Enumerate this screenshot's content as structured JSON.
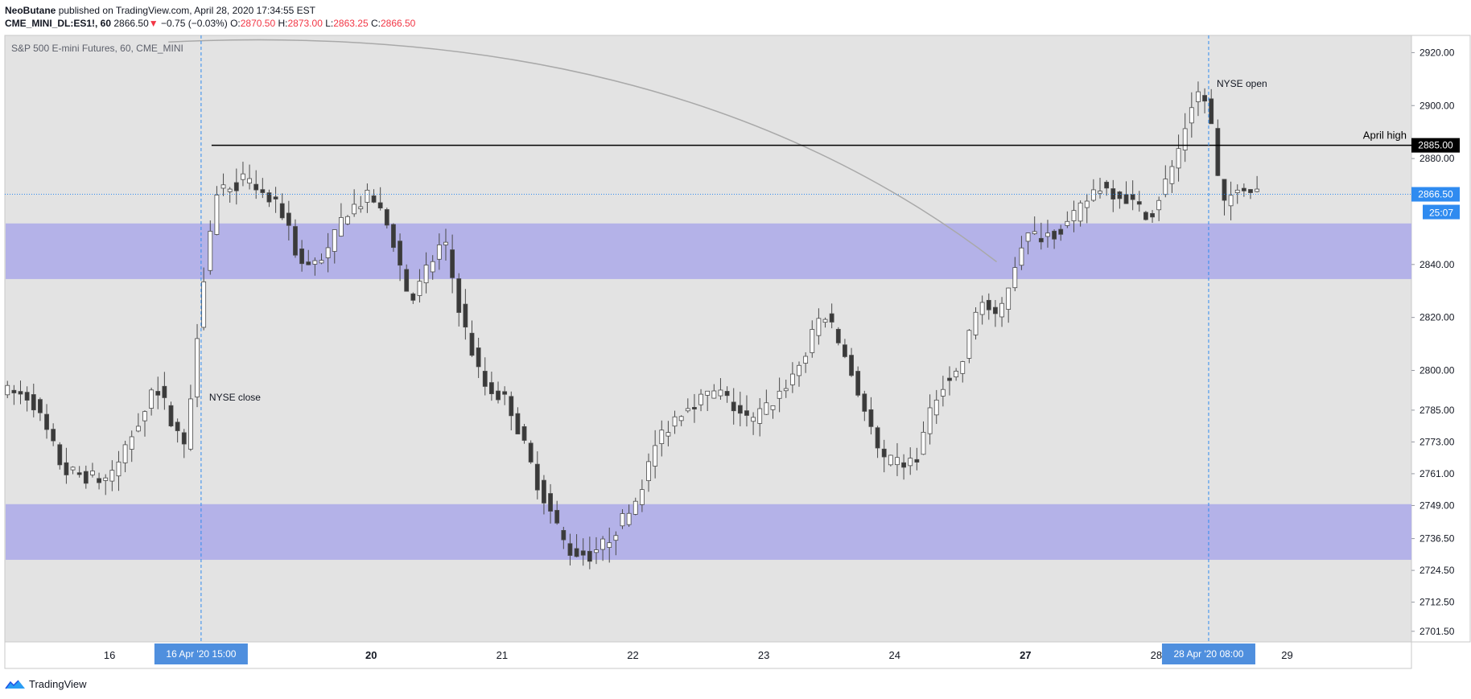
{
  "header": {
    "line1_author": "NeoButane",
    "line1_rest": "published on TradingView.com, April 28, 2020 17:34:55 EST",
    "symbol": "CME_MINI_DL:ES1!, 60",
    "last": "2866.50",
    "change_arrow": "▼",
    "change": "−0.75 (−0.03%)",
    "o_label": "O:",
    "o": "2870.50",
    "h_label": "H:",
    "h": "2873.00",
    "l_label": "L:",
    "l": "2863.25",
    "c_label": "C:",
    "c": "2866.50"
  },
  "footer": {
    "brand": "TradingView"
  },
  "colors": {
    "pane_bg": "#e3e3e3",
    "zone": "#b4b2e8",
    "up_body": "#ffffff",
    "down_body": "#3a3a3a",
    "wick": "#4a4a4a",
    "accent_blue": "#2f8bf0",
    "label_blue": "#4f8fde",
    "curve": "#a9a9a9"
  },
  "chart_data": {
    "type": "candlestick",
    "title": "S&P 500 E-mini Futures, 60, CME_MINI",
    "x_labels": [
      {
        "t": 0.8,
        "label": "16",
        "bold": false
      },
      {
        "t": 2.8,
        "label": "20",
        "bold": true
      },
      {
        "t": 3.8,
        "label": "21",
        "bold": false
      },
      {
        "t": 4.8,
        "label": "22",
        "bold": false
      },
      {
        "t": 5.8,
        "label": "23",
        "bold": false
      },
      {
        "t": 6.8,
        "label": "24",
        "bold": false
      },
      {
        "t": 7.8,
        "label": "27",
        "bold": true
      },
      {
        "t": 8.8,
        "label": "28",
        "bold": false
      },
      {
        "t": 9.8,
        "label": "29",
        "bold": false
      }
    ],
    "x_range": [
      0,
      10.75
    ],
    "y_range": [
      2697.5,
      2926.5
    ],
    "y_ticks": [
      "2920.00",
      "2900.00",
      "2880.00",
      "2840.00",
      "2820.00",
      "2800.00",
      "2785.00",
      "2773.00",
      "2761.00",
      "2749.00",
      "2736.50",
      "2724.50",
      "2712.50",
      "2701.50"
    ],
    "y_ticks_values": [
      2920,
      2900,
      2880,
      2840,
      2820,
      2800,
      2785,
      2773,
      2761,
      2749,
      2736.5,
      2724.5,
      2712.5,
      2701.5
    ],
    "zones": [
      {
        "from": 2834.5,
        "to": 2855.5
      },
      {
        "from": 2728.5,
        "to": 2749.5
      }
    ],
    "horizontal_lines": [
      {
        "value": 2885.0,
        "label": "April high",
        "price_label": "2885.00",
        "style": "solid"
      },
      {
        "value": 2866.5,
        "price_label": "2866.50",
        "style": "dotted",
        "countdown": "25:07"
      }
    ],
    "vertical_markers": [
      {
        "t": 1.5,
        "label": "NYSE close",
        "axis_label": "16 Apr '20   15:00"
      },
      {
        "t": 9.2,
        "label": "NYSE open",
        "axis_label": "28 Apr '20   08:00"
      }
    ],
    "curve_label": "",
    "anchors": [
      [
        0.0,
        2792
      ],
      [
        0.2,
        2790
      ],
      [
        0.45,
        2762
      ],
      [
        0.8,
        2758
      ],
      [
        1.15,
        2795
      ],
      [
        1.38,
        2770
      ],
      [
        1.5,
        2830
      ],
      [
        1.62,
        2868
      ],
      [
        1.85,
        2872
      ],
      [
        2.15,
        2858
      ],
      [
        2.25,
        2840
      ],
      [
        2.45,
        2842
      ],
      [
        2.6,
        2860
      ],
      [
        2.8,
        2866
      ],
      [
        2.95,
        2852
      ],
      [
        3.1,
        2825
      ],
      [
        3.25,
        2840
      ],
      [
        3.35,
        2850
      ],
      [
        3.5,
        2818
      ],
      [
        3.65,
        2795
      ],
      [
        3.85,
        2788
      ],
      [
        4.05,
        2760
      ],
      [
        4.3,
        2732
      ],
      [
        4.5,
        2730
      ],
      [
        4.8,
        2748
      ],
      [
        5.0,
        2775
      ],
      [
        5.2,
        2787
      ],
      [
        5.45,
        2792
      ],
      [
        5.7,
        2780
      ],
      [
        5.9,
        2790
      ],
      [
        6.1,
        2804
      ],
      [
        6.25,
        2823
      ],
      [
        6.4,
        2808
      ],
      [
        6.55,
        2788
      ],
      [
        6.7,
        2765
      ],
      [
        6.95,
        2765
      ],
      [
        7.15,
        2795
      ],
      [
        7.3,
        2800
      ],
      [
        7.45,
        2828
      ],
      [
        7.58,
        2818
      ],
      [
        7.78,
        2850
      ],
      [
        8.0,
        2852
      ],
      [
        8.15,
        2856
      ],
      [
        8.35,
        2870
      ],
      [
        8.55,
        2866
      ],
      [
        8.75,
        2858
      ],
      [
        8.95,
        2880
      ],
      [
        9.1,
        2906
      ],
      [
        9.2,
        2900
      ],
      [
        9.3,
        2860
      ],
      [
        9.42,
        2870
      ],
      [
        9.6,
        2866
      ]
    ],
    "curve": {
      "from_t": 1.25,
      "from_v": 2924,
      "to_t": 7.58,
      "to_v": 2841
    }
  }
}
